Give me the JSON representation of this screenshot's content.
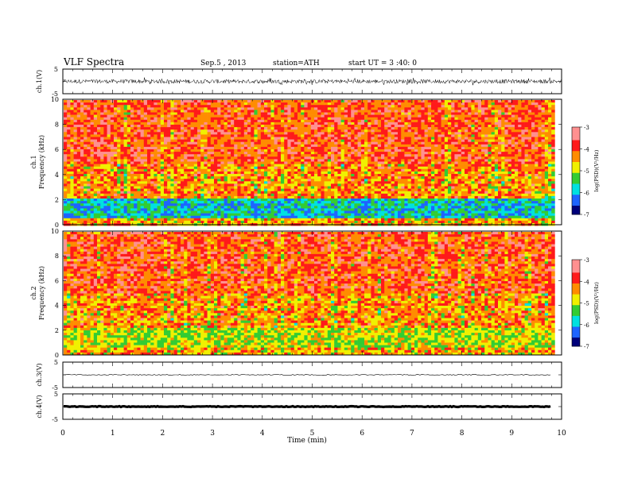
{
  "header": {
    "title": "VLF Spectra",
    "date": "Sep.5 , 2013",
    "station": "station=ATH",
    "start": "start UT =  3 :40: 0"
  },
  "chart_data": [
    {
      "type": "line",
      "panel": "ch1-waveform",
      "ylabel": "ch.1(V)",
      "yticks": [
        "5",
        "-5"
      ],
      "ylim": [
        -5,
        5
      ],
      "amplitude_range": [
        -1.5,
        1.5
      ],
      "xlim": [
        0,
        10
      ]
    },
    {
      "type": "heatmap",
      "panel": "ch1-spectrogram",
      "ylabel_top": "ch.1",
      "ylabel": "Frequency (kHz)",
      "yticks": [
        "0",
        "2",
        "4",
        "6",
        "8",
        "10"
      ],
      "ylim": [
        0,
        10
      ],
      "xlim": [
        0,
        9.8
      ],
      "colorbar_label": "log(PSD)(V²/Hz)",
      "colorbar_ticks": [
        "-3",
        "-4",
        "-5",
        "-6",
        "-7"
      ],
      "colorbar_range": [
        -7,
        -3
      ]
    },
    {
      "type": "heatmap",
      "panel": "ch2-spectrogram",
      "ylabel_top": "ch.2",
      "ylabel": "Frequency (kHz)",
      "yticks": [
        "0",
        "2",
        "4",
        "6",
        "8",
        "10"
      ],
      "ylim": [
        0,
        10
      ],
      "xlim": [
        0,
        9.8
      ],
      "colorbar_label": "log(PSD)(V²/Hz)",
      "colorbar_ticks": [
        "-3",
        "-4",
        "-5",
        "-6",
        "-7"
      ],
      "colorbar_range": [
        -7,
        -3
      ]
    },
    {
      "type": "line",
      "panel": "ch3-waveform",
      "ylabel": "ch.3(V)",
      "yticks": [
        "5",
        "-5"
      ],
      "ylim": [
        -5,
        5
      ],
      "level": 0,
      "xlim": [
        0,
        9.8
      ]
    },
    {
      "type": "line",
      "panel": "ch4-waveform",
      "ylabel": "ch.4(V)",
      "yticks": [
        "5",
        "-5"
      ],
      "ylim": [
        -5,
        5
      ],
      "level": 0,
      "xlim": [
        0,
        9.8
      ]
    }
  ],
  "xaxis": {
    "label": "Time (min)",
    "ticks": [
      "0",
      "1",
      "2",
      "3",
      "4",
      "5",
      "6",
      "7",
      "8",
      "9",
      "10"
    ],
    "range": [
      0,
      10
    ]
  },
  "colors": {
    "dark_red": "#8b0000",
    "red": "#ff1a1a",
    "orange": "#ff8c00",
    "yellow": "#f0f000",
    "green": "#33cc33",
    "cyan": "#00e0e0",
    "blue": "#1e64ff",
    "navy": "#00007a",
    "black": "#000000",
    "pink": "#ff9090"
  }
}
